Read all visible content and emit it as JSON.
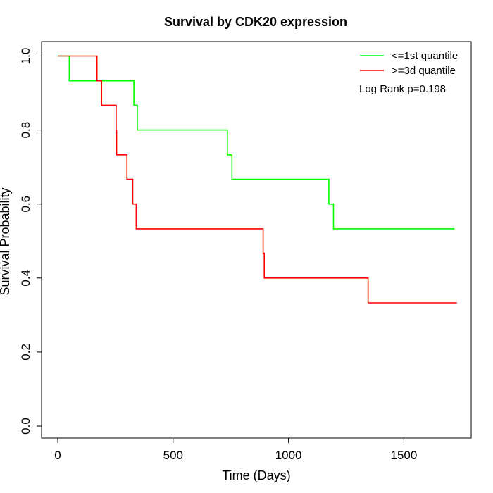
{
  "chart_data": {
    "type": "line",
    "subtype": "kaplan-meier-step",
    "title": "Survival by CDK20 expression",
    "xlabel": "Time (Days)",
    "ylabel": "Survival Probability",
    "xlim": [
      0,
      1730
    ],
    "ylim": [
      0,
      1
    ],
    "x_ticks": [
      0,
      500,
      1000,
      1500
    ],
    "y_ticks": [
      "0.0",
      "0.2",
      "0.4",
      "0.6",
      "0.8",
      "1.0"
    ],
    "grid": false,
    "legend_position": "top-right",
    "annotation": "Log Rank p=0.198",
    "series": [
      {
        "name": "<=1st quantile",
        "color": "#00ff00",
        "x": [
          0,
          50,
          330,
          345,
          735,
          755,
          1175,
          1195,
          1720
        ],
        "y": [
          1.0,
          0.933,
          0.867,
          0.8,
          0.733,
          0.667,
          0.6,
          0.533,
          0.533
        ]
      },
      {
        "name": ">=3d quantile",
        "color": "#ff0000",
        "x": [
          0,
          170,
          190,
          253,
          255,
          300,
          325,
          340,
          890,
          895,
          1345,
          1730
        ],
        "y": [
          1.0,
          0.933,
          0.867,
          0.8,
          0.733,
          0.667,
          0.6,
          0.533,
          0.467,
          0.4,
          0.333,
          0.333
        ]
      }
    ]
  }
}
